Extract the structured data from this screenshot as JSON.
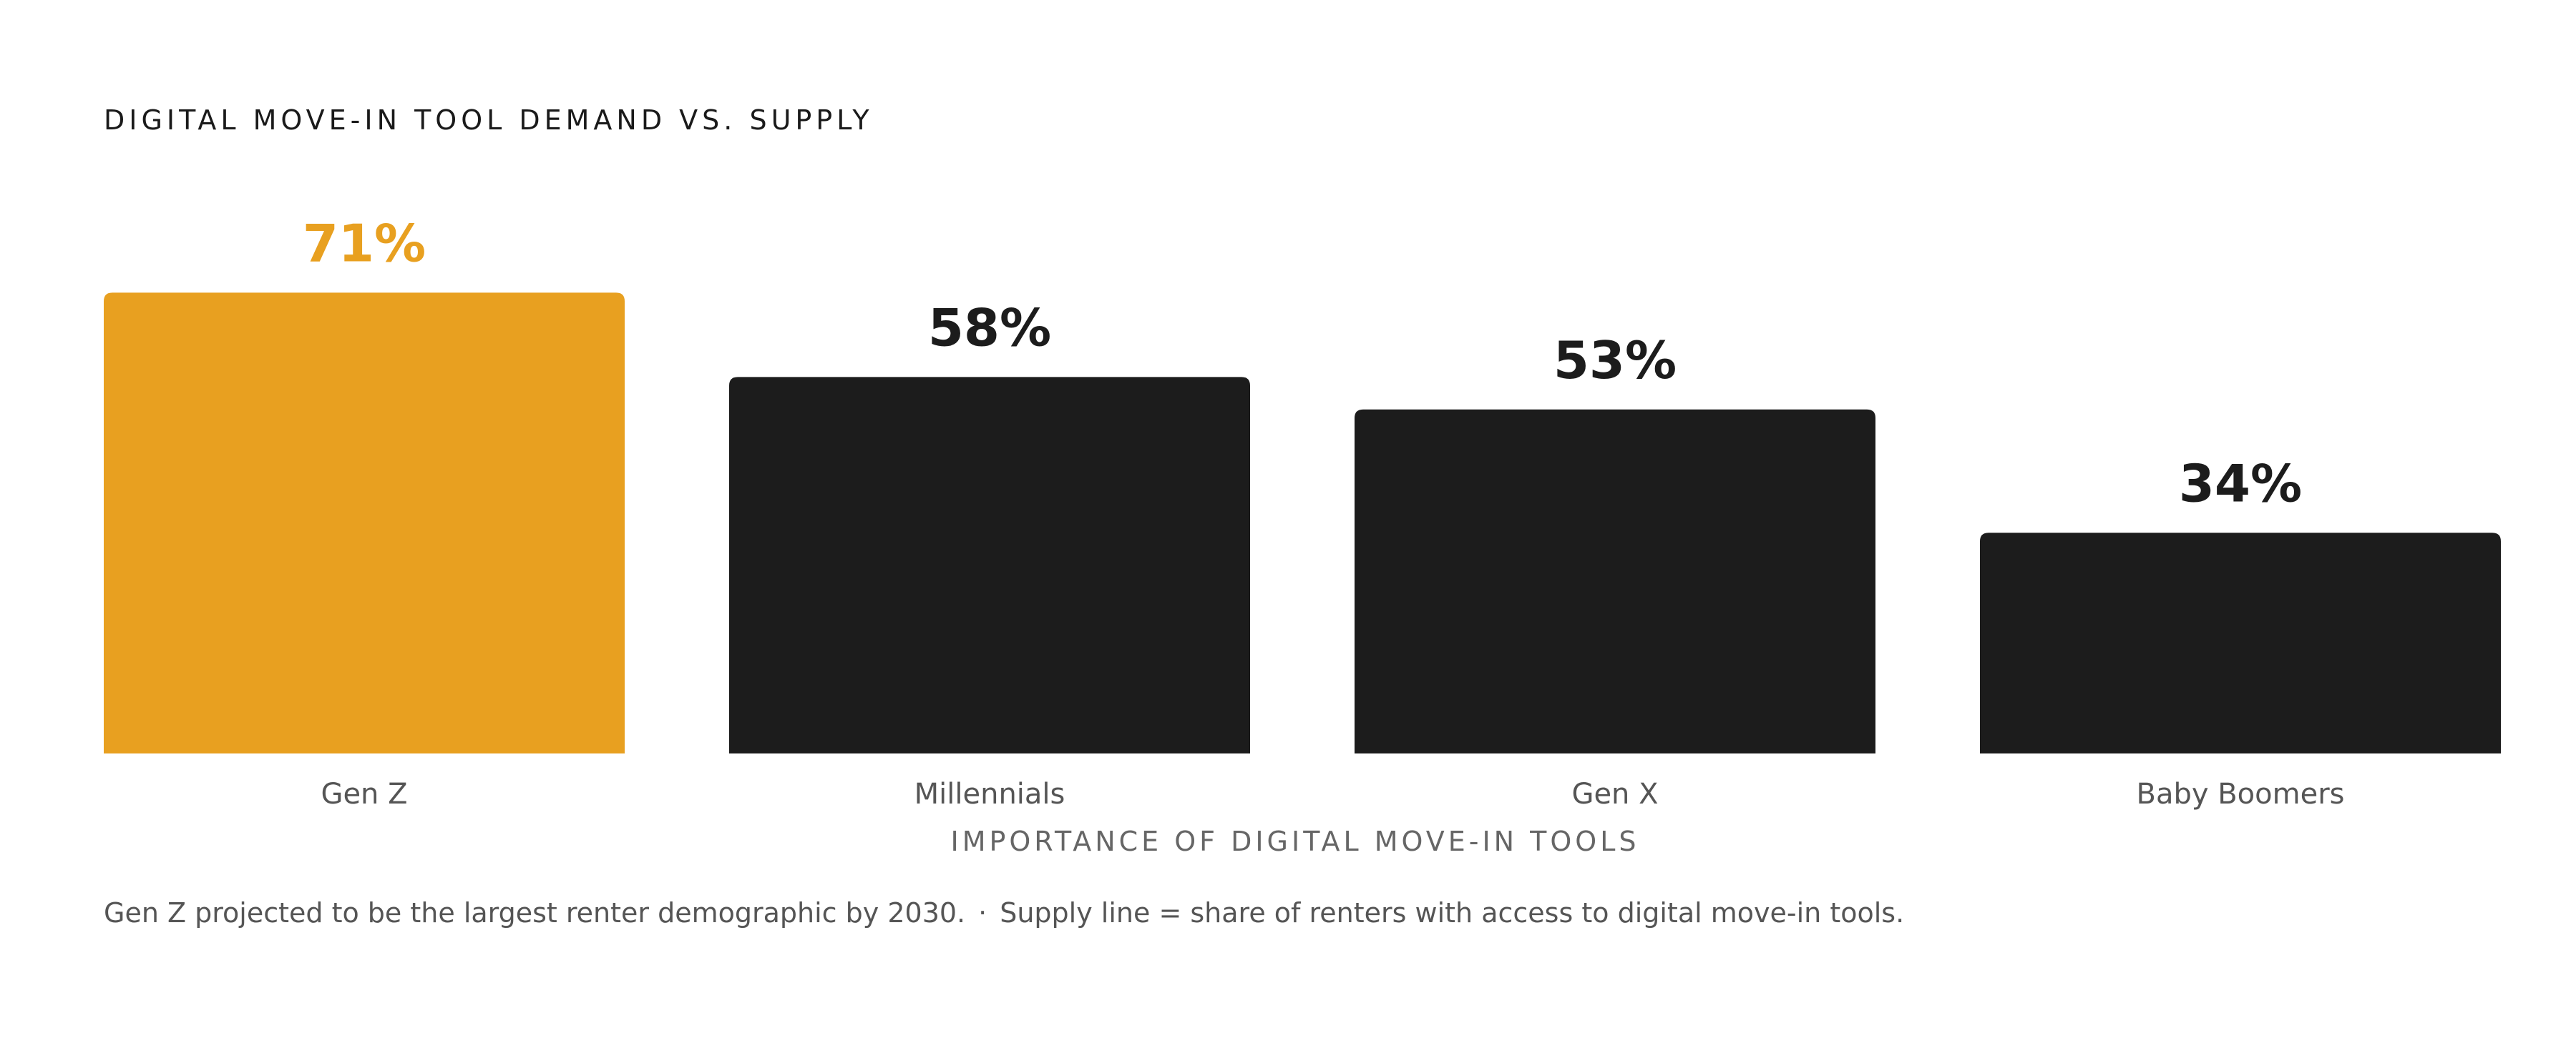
{
  "chart_data": {
    "type": "bar",
    "title": "DIGITAL MOVE-IN TOOL DEMAND VS. SUPPLY",
    "xlabel": "IMPORTANCE OF DIGITAL MOVE-IN TOOLS",
    "ylabel": "",
    "categories": [
      "Gen Z",
      "Millennials",
      "Gen X",
      "Baby Boomers"
    ],
    "values": [
      71,
      58,
      53,
      34
    ],
    "value_labels": [
      "71%",
      "58%",
      "53%",
      "34%"
    ],
    "ylim": [
      0,
      100
    ],
    "grid": false,
    "legend": "none",
    "colors": {
      "highlight": "#E8A020",
      "default": "#1C1C1C",
      "highlight_label": "#E8A020",
      "default_label": "#1C1C1C",
      "category_label": "#555555"
    },
    "highlight_index": 0
  },
  "footnote": {
    "part1": "Gen Z projected to be the largest renter demographic by 2030.",
    "separator": "·",
    "part2": "Supply line = share of renters with access to digital move-in tools."
  }
}
